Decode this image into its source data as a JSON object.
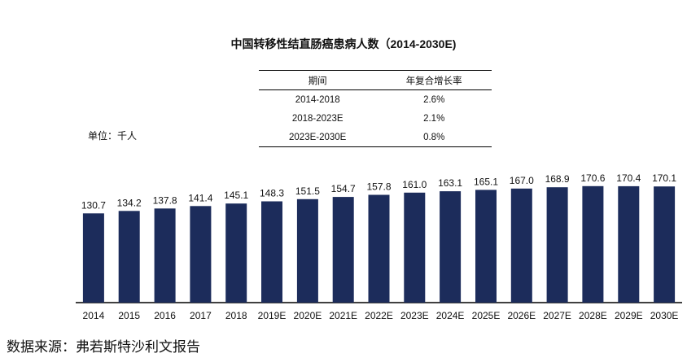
{
  "title": "中国转移性结直肠癌患病人数（2014-2030E)",
  "cagr_table": {
    "headers": [
      "期间",
      "年复合增长率"
    ],
    "rows": [
      [
        "2014-2018",
        "2.6%"
      ],
      [
        "2018-2023E",
        "2.1%"
      ],
      [
        "2023E-2030E",
        "0.8%"
      ]
    ]
  },
  "unit_label": "单位：千人",
  "source": "数据来源：弗若斯特沙利文报告",
  "colors": {
    "bar": "#1c2c5b",
    "axis": "#000000"
  },
  "chart_data": {
    "type": "bar",
    "title": "中国转移性结直肠癌患病人数（2014-2030E)",
    "categories": [
      "2014",
      "2015",
      "2016",
      "2017",
      "2018",
      "2019E",
      "2020E",
      "2021E",
      "2022E",
      "2023E",
      "2024E",
      "2025E",
      "2026E",
      "2027E",
      "2028E",
      "2029E",
      "2030E"
    ],
    "values": [
      130.7,
      134.2,
      137.8,
      141.4,
      145.1,
      148.3,
      151.5,
      154.7,
      157.8,
      161.0,
      163.1,
      165.1,
      167.0,
      168.9,
      170.6,
      170.4,
      170.1
    ],
    "value_labels": [
      "130.7",
      "134.2",
      "137.8",
      "141.4",
      "145.1",
      "148.3",
      "151.5",
      "154.7",
      "157.8",
      "161.0",
      "163.1",
      "165.1",
      "167.0",
      "168.9",
      "170.6",
      "170.4",
      "170.1"
    ],
    "xlabel": "",
    "ylabel": "单位：千人",
    "ylim": [
      0,
      175
    ],
    "grid": false,
    "data_labels": true
  }
}
